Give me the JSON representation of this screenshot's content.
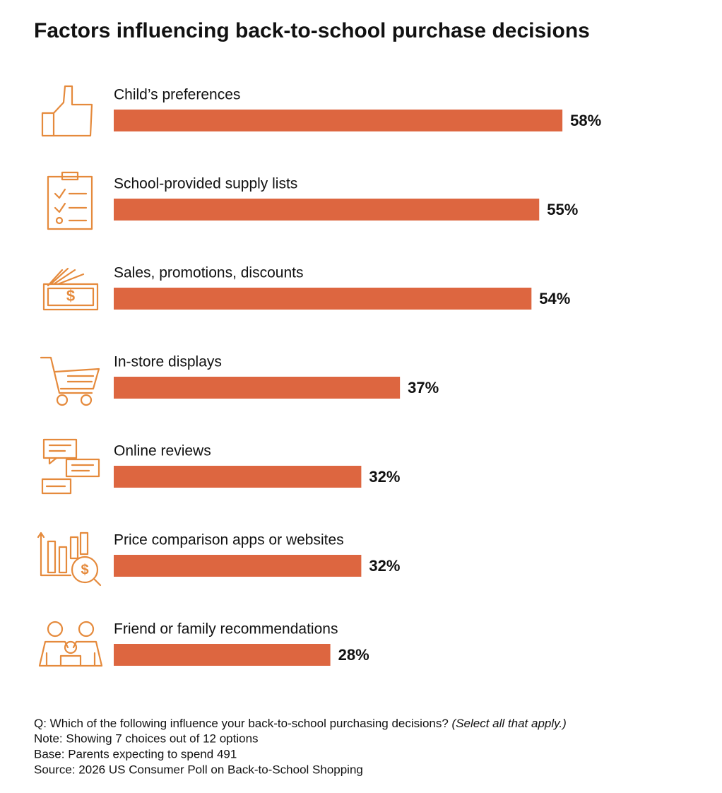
{
  "chart_data": {
    "type": "bar",
    "orientation": "horizontal",
    "title": "Factors influencing back-to-school purchase decisions",
    "categories": [
      "Child’s preferences",
      "School-provided supply lists",
      "Sales, promotions, discounts",
      "In-store displays",
      "Online reviews",
      "Price comparison apps or websites",
      "Friend or family recommendations"
    ],
    "values": [
      58,
      55,
      54,
      37,
      32,
      32,
      28
    ],
    "value_labels": [
      "58%",
      "55%",
      "54%",
      "37%",
      "32%",
      "32%",
      "28%"
    ],
    "color": "#dd6640",
    "notes": {
      "question": "Q: Which of the following influence your back-to-school purchasing decisions?",
      "question_hint": "(Select all that apply.)",
      "lines": [
        "Note: Showing 7 choices out of 12 options",
        "Base: Parents expecting to spend 491",
        "Source: 2026 US Consumer Poll on Back-to-School Shopping"
      ]
    }
  }
}
